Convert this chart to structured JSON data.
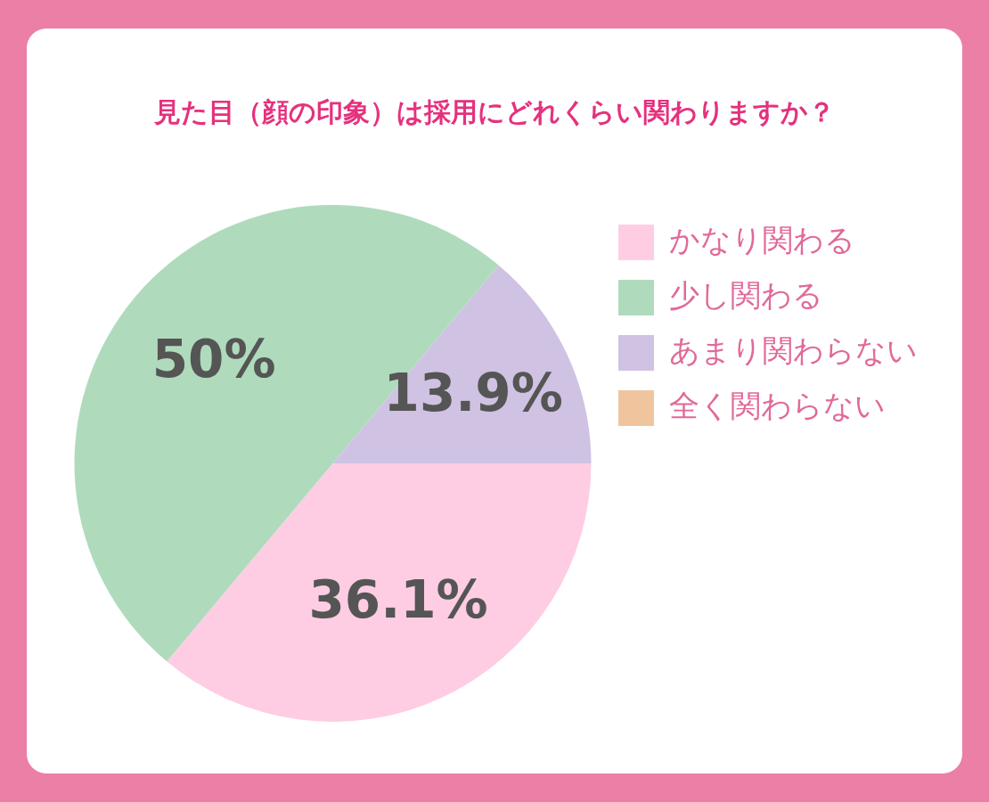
{
  "chart_data": {
    "type": "pie",
    "title": "見た目（顔の印象）は採用にどれくらい関わりますか？",
    "categories": [
      "かなり関わる",
      "少し関わる",
      "あまり関わらない",
      "全く関わらない"
    ],
    "values": [
      36.1,
      50,
      13.9,
      0
    ],
    "colors": [
      "#fecde3",
      "#afdbbc",
      "#d0c2e3",
      "#f0c59d"
    ],
    "value_labels": [
      "36.1%",
      "50%",
      "13.9%",
      null
    ],
    "legend": "right"
  }
}
